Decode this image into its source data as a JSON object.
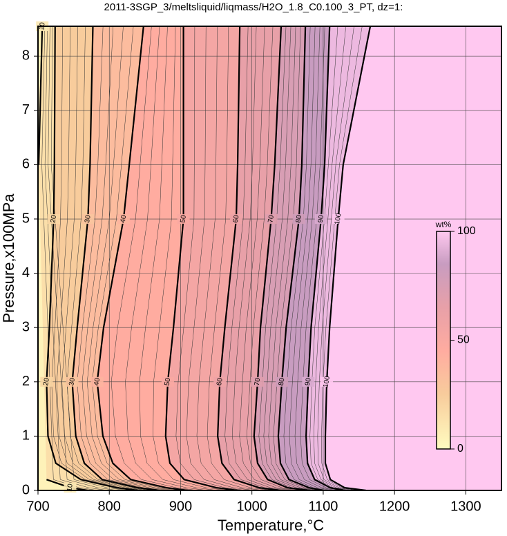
{
  "chart_data": {
    "type": "contour",
    "title": "2011-3SGP_3/meltsliquid/liqmass/H2O_1.8_C0.100_3_PT, dz=1:",
    "x_label": "Temperature,°C",
    "y_label": "Pressure,x100MPa",
    "xlim": [
      700,
      1350
    ],
    "ylim": [
      0,
      8.55
    ],
    "xticks": [
      700,
      800,
      900,
      1000,
      1100,
      1200,
      1300
    ],
    "yticks": [
      0,
      1,
      2,
      3,
      4,
      5,
      6,
      7,
      8
    ],
    "grid": true,
    "y": [
      8.55,
      6,
      5,
      3,
      2,
      1,
      0.5,
      0.2,
      0.05,
      0
    ],
    "contours": [
      {
        "level": 10,
        "x": [
          706,
          701,
          null,
          null,
          null,
          null,
          null,
          712,
          745,
          770
        ]
      },
      {
        "level": 20,
        "x": [
          724,
          723,
          722,
          716,
          712,
          714,
          725,
          760,
          810,
          840
        ]
      },
      {
        "level": 30,
        "x": [
          777,
          773,
          770,
          755,
          748,
          753,
          765,
          790,
          840,
          870
        ]
      },
      {
        "level": 40,
        "x": [
          848,
          828,
          820,
          792,
          783,
          791,
          805,
          830,
          880,
          910
        ]
      },
      {
        "level": 50,
        "x": [
          904,
          904,
          904,
          890,
          882,
          879,
          885,
          905,
          950,
          980
        ]
      },
      {
        "level": 60,
        "x": [
          983,
          980,
          978,
          962,
          955,
          952,
          958,
          975,
          1010,
          1040
        ]
      },
      {
        "level": 70,
        "x": [
          1041,
          1032,
          1027,
          1012,
          1008,
          1003,
          1008,
          1022,
          1050,
          1080
        ]
      },
      {
        "level": 80,
        "x": [
          1075,
          1070,
          1066,
          1048,
          1042,
          1037,
          1040,
          1052,
          1080,
          1100
        ]
      },
      {
        "level": 90,
        "x": [
          1109,
          1102,
          1097,
          1083,
          1079,
          1076,
          1078,
          1088,
          1110,
          1130
        ]
      },
      {
        "level": 100,
        "x": [
          1166,
          1128,
          1121,
          1109,
          1105,
          1103,
          1103,
          1110,
          1130,
          1160
        ]
      }
    ],
    "colorbar": {
      "title": "wt%",
      "lim": [
        0,
        100
      ],
      "ticks": [
        0,
        50,
        100
      ],
      "stops": [
        0,
        25,
        45,
        65,
        85,
        100
      ],
      "colors": [
        "#fffcc0",
        "#f8cc9c",
        "#ffaca0",
        "#e8a0a8",
        "#c89cc0",
        "#ffc8f0"
      ]
    }
  }
}
